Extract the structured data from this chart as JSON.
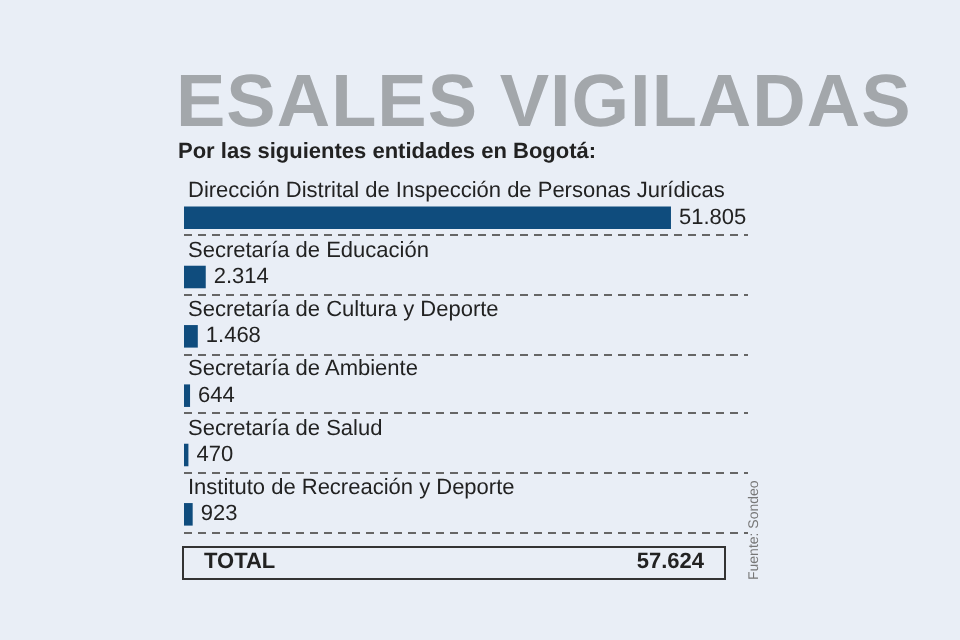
{
  "chart_data": {
    "type": "bar",
    "orientation": "horizontal",
    "title": "ESALES VIGILADAS",
    "subtitle": "Por las siguientes entidades en Bogotá:",
    "categories": [
      "Dirección Distrital de Inspección de Personas Jurídicas",
      "Secretaría de Educación",
      "Secretaría de Cultura y Deporte",
      "Secretaría de Ambiente",
      "Secretaría de Salud",
      "Instituto de Recreación y Deporte"
    ],
    "values": [
      51805,
      2314,
      1468,
      644,
      470,
      923
    ],
    "value_labels": [
      "51.805",
      "2.314",
      "1.468",
      "644",
      "470",
      "923"
    ],
    "color": "#0f4c7d",
    "grid": "y",
    "tick_labels": false,
    "annotations": [
      "TOTAL",
      "57.624",
      "Fuente: Sondeo"
    ]
  }
}
